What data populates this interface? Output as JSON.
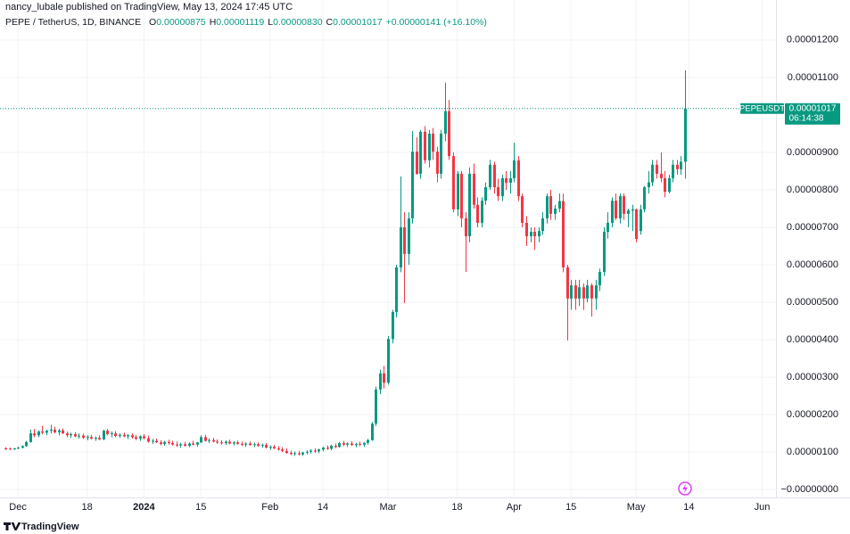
{
  "header": {
    "publisher": "nancy_lubale published on TradingView, May 13, 2024 17:45 UTC"
  },
  "chart_data": {
    "type": "candlestick",
    "symbol": "PEPE / TetherUS, 1D, BINANCE",
    "ohlc_legend": [
      {
        "label": "O",
        "value": "0.00000875"
      },
      {
        "label": "H",
        "value": "0.00001119"
      },
      {
        "label": "L",
        "value": "0.00000830"
      },
      {
        "label": "C",
        "value": "0.00001017"
      }
    ],
    "change": "+0.00000141 (+16.10%)",
    "up_color": "#089981",
    "down_color": "#f23645",
    "last_price": {
      "symbol": "PEPEUSDT",
      "price": "0.00001017",
      "countdown": "06:14:38"
    },
    "candles": [
      [
        1.1e-06,
        1.13e-06,
        1.06e-06,
        1.09e-06
      ],
      [
        1.09e-06,
        1.12e-06,
        1.06e-06,
        1.08e-06
      ],
      [
        1.08e-06,
        1.11e-06,
        1.06e-06,
        1.1e-06
      ],
      [
        1.1e-06,
        1.14e-06,
        1.08e-06,
        1.12e-06
      ],
      [
        1.12e-06,
        1.18e-06,
        1.1e-06,
        1.16e-06
      ],
      [
        1.16e-06,
        1.3e-06,
        1.14e-06,
        1.27e-06
      ],
      [
        1.27e-06,
        1.6e-06,
        1.25e-06,
        1.5e-06
      ],
      [
        1.5e-06,
        1.62e-06,
        1.4e-06,
        1.45e-06
      ],
      [
        1.45e-06,
        1.58e-06,
        1.4e-06,
        1.55e-06
      ],
      [
        1.55e-06,
        1.7e-06,
        1.48e-06,
        1.52e-06
      ],
      [
        1.52e-06,
        1.6e-06,
        1.45e-06,
        1.57e-06
      ],
      [
        1.57e-06,
        1.73e-06,
        1.5e-06,
        1.6e-06
      ],
      [
        1.6e-06,
        1.68e-06,
        1.5e-06,
        1.53e-06
      ],
      [
        1.53e-06,
        1.62e-06,
        1.45e-06,
        1.58e-06
      ],
      [
        1.58e-06,
        1.63e-06,
        1.48e-06,
        1.5e-06
      ],
      [
        1.5e-06,
        1.55e-06,
        1.4e-06,
        1.45e-06
      ],
      [
        1.45e-06,
        1.52e-06,
        1.38e-06,
        1.48e-06
      ],
      [
        1.48e-06,
        1.53e-06,
        1.4e-06,
        1.42e-06
      ],
      [
        1.42e-06,
        1.5e-06,
        1.36e-06,
        1.44e-06
      ],
      [
        1.44e-06,
        1.49e-06,
        1.35e-06,
        1.38e-06
      ],
      [
        1.38e-06,
        1.45e-06,
        1.32e-06,
        1.4e-06
      ],
      [
        1.4e-06,
        1.46e-06,
        1.34e-06,
        1.36e-06
      ],
      [
        1.36e-06,
        1.42e-06,
        1.3e-06,
        1.38e-06
      ],
      [
        1.38e-06,
        1.45e-06,
        1.32e-06,
        1.34e-06
      ],
      [
        1.34e-06,
        1.6e-06,
        1.32e-06,
        1.57e-06
      ],
      [
        1.57e-06,
        1.62e-06,
        1.45e-06,
        1.48e-06
      ],
      [
        1.48e-06,
        1.55e-06,
        1.4e-06,
        1.5e-06
      ],
      [
        1.5e-06,
        1.56e-06,
        1.4e-06,
        1.43e-06
      ],
      [
        1.43e-06,
        1.5e-06,
        1.38e-06,
        1.46e-06
      ],
      [
        1.46e-06,
        1.52e-06,
        1.4e-06,
        1.42e-06
      ],
      [
        1.42e-06,
        1.48e-06,
        1.35e-06,
        1.45e-06
      ],
      [
        1.45e-06,
        1.5e-06,
        1.36e-06,
        1.4e-06
      ],
      [
        1.4e-06,
        1.46e-06,
        1.32e-06,
        1.36e-06
      ],
      [
        1.36e-06,
        1.45e-06,
        1.3e-06,
        1.42e-06
      ],
      [
        1.42e-06,
        1.48e-06,
        1.34e-06,
        1.37e-06
      ],
      [
        1.37e-06,
        1.44e-06,
        1.25e-06,
        1.28e-06
      ],
      [
        1.28e-06,
        1.35e-06,
        1.22e-06,
        1.3e-06
      ],
      [
        1.3e-06,
        1.36e-06,
        1.24e-06,
        1.26e-06
      ],
      [
        1.26e-06,
        1.32e-06,
        1.18e-06,
        1.22e-06
      ],
      [
        1.22e-06,
        1.3e-06,
        1.17e-06,
        1.27e-06
      ],
      [
        1.27e-06,
        1.33e-06,
        1.2e-06,
        1.24e-06
      ],
      [
        1.24e-06,
        1.3e-06,
        1.18e-06,
        1.2e-06
      ],
      [
        1.2e-06,
        1.28e-06,
        1.14e-06,
        1.18e-06
      ],
      [
        1.18e-06,
        1.25e-06,
        1.12e-06,
        1.21e-06
      ],
      [
        1.21e-06,
        1.27e-06,
        1.15e-06,
        1.17e-06
      ],
      [
        1.17e-06,
        1.26e-06,
        1.13e-06,
        1.23e-06
      ],
      [
        1.23e-06,
        1.3e-06,
        1.18e-06,
        1.2e-06
      ],
      [
        1.2e-06,
        1.27e-06,
        1.15e-06,
        1.26e-06
      ],
      [
        1.26e-06,
        1.45e-06,
        1.24e-06,
        1.4e-06
      ],
      [
        1.4e-06,
        1.46e-06,
        1.28e-06,
        1.3e-06
      ],
      [
        1.3e-06,
        1.37e-06,
        1.24e-06,
        1.32e-06
      ],
      [
        1.32e-06,
        1.38e-06,
        1.26e-06,
        1.28e-06
      ],
      [
        1.28e-06,
        1.34e-06,
        1.22e-06,
        1.26e-06
      ],
      [
        1.26e-06,
        1.32e-06,
        1.2e-06,
        1.24e-06
      ],
      [
        1.24e-06,
        1.31e-06,
        1.19e-06,
        1.28e-06
      ],
      [
        1.28e-06,
        1.33e-06,
        1.21e-06,
        1.23e-06
      ],
      [
        1.23e-06,
        1.29e-06,
        1.18e-06,
        1.26e-06
      ],
      [
        1.26e-06,
        1.31e-06,
        1.2e-06,
        1.22e-06
      ],
      [
        1.22e-06,
        1.28e-06,
        1.16e-06,
        1.2e-06
      ],
      [
        1.2e-06,
        1.26e-06,
        1.14e-06,
        1.23e-06
      ],
      [
        1.23e-06,
        1.28e-06,
        1.17e-06,
        1.19e-06
      ],
      [
        1.19e-06,
        1.25e-06,
        1.13e-06,
        1.21e-06
      ],
      [
        1.21e-06,
        1.26e-06,
        1.14e-06,
        1.17e-06
      ],
      [
        1.17e-06,
        1.23e-06,
        1.12e-06,
        1.19e-06
      ],
      [
        1.19e-06,
        1.24e-06,
        1.1e-06,
        1.12e-06
      ],
      [
        1.12e-06,
        1.18e-06,
        1.06e-06,
        1.14e-06
      ],
      [
        1.14e-06,
        1.19e-06,
        1.08e-06,
        1.1e-06
      ],
      [
        1.1e-06,
        1.16e-06,
        1.04e-06,
        1.07e-06
      ],
      [
        1.07e-06,
        1.13e-06,
        1e-06,
        1.03e-06
      ],
      [
        1.03e-06,
        1.1e-06,
        9.6e-07,
        9.8e-07
      ],
      [
        9.8e-07,
        1.04e-06,
        9.2e-07,
        9.5e-07
      ],
      [
        9.5e-07,
        1.02e-06,
        9e-07,
        9.7e-07
      ],
      [
        9.7e-07,
        1.03e-06,
        9.1e-07,
        9.4e-07
      ],
      [
        9.4e-07,
        1.01e-06,
        9e-07,
        9.9e-07
      ],
      [
        9.9e-07,
        1.05e-06,
        9.4e-07,
        1.01e-06
      ],
      [
        1.01e-06,
        1.08e-06,
        9.6e-07,
        1.04e-06
      ],
      [
        1.04e-06,
        1.1e-06,
        9.8e-07,
        1.02e-06
      ],
      [
        1.02e-06,
        1.09e-06,
        9.7e-07,
        1.07e-06
      ],
      [
        1.07e-06,
        1.14e-06,
        1.02e-06,
        1.12e-06
      ],
      [
        1.12e-06,
        1.18e-06,
        1.06e-06,
        1.09e-06
      ],
      [
        1.09e-06,
        1.2e-06,
        1.05e-06,
        1.17e-06
      ],
      [
        1.17e-06,
        1.23e-06,
        1.1e-06,
        1.14e-06
      ],
      [
        1.14e-06,
        1.27e-06,
        1.12e-06,
        1.24e-06
      ],
      [
        1.24e-06,
        1.3e-06,
        1.16e-06,
        1.2e-06
      ],
      [
        1.2e-06,
        1.26e-06,
        1.14e-06,
        1.23e-06
      ],
      [
        1.23e-06,
        1.29e-06,
        1.17e-06,
        1.19e-06
      ],
      [
        1.19e-06,
        1.25e-06,
        1.13e-06,
        1.22e-06
      ],
      [
        1.22e-06,
        1.28e-06,
        1.16e-06,
        1.2e-06
      ],
      [
        1.2e-06,
        1.26e-06,
        1.14e-06,
        1.25e-06
      ],
      [
        1.25e-06,
        1.35e-06,
        1.2e-06,
        1.32e-06
      ],
      [
        1.32e-06,
        1.8e-06,
        1.3e-06,
        1.76e-06
      ],
      [
        1.76e-06,
        2.75e-06,
        1.7e-06,
        2.67e-06
      ],
      [
        2.67e-06,
        3.2e-06,
        2.55e-06,
        3.1e-06
      ],
      [
        3.1e-06,
        3.3e-06,
        2.7e-06,
        2.85e-06
      ],
      [
        2.85e-06,
        4.1e-06,
        2.8e-06,
        4.02e-06
      ],
      [
        4.02e-06,
        4.8e-06,
        3.9e-06,
        4.74e-06
      ],
      [
        4.74e-06,
        6e-06,
        4.6e-06,
        5.93e-06
      ],
      [
        5.93e-06,
        8.36e-06,
        5.8e-06,
        7e-06
      ],
      [
        7e-06,
        7.4e-06,
        4.98e-06,
        6.29e-06
      ],
      [
        6.29e-06,
        7.4e-06,
        6e-06,
        7.24e-06
      ],
      [
        7.24e-06,
        9.57e-06,
        7.1e-06,
        9.02e-06
      ],
      [
        9.02e-06,
        9.4e-06,
        8.4e-06,
        8.43e-06
      ],
      [
        8.43e-06,
        9.6e-06,
        8.3e-06,
        9.55e-06
      ],
      [
        9.55e-06,
        9.7e-06,
        8.7e-06,
        8.79e-06
      ],
      [
        8.79e-06,
        9.6e-06,
        8.6e-06,
        9.5e-06
      ],
      [
        9.5e-06,
        9.65e-06,
        8.8e-06,
        9.02e-06
      ],
      [
        9.02e-06,
        9.15e-06,
        8.2e-06,
        8.43e-06
      ],
      [
        8.43e-06,
        9.6e-06,
        8.3e-06,
        9.5e-06
      ],
      [
        9.5e-06,
        1.086e-05,
        9.3e-06,
        1.01e-05
      ],
      [
        1.01e-05,
        1.04e-05,
        8.8e-06,
        8.9e-06
      ],
      [
        8.9e-06,
        9e-06,
        7.4e-06,
        7.48e-06
      ],
      [
        7.48e-06,
        8.5e-06,
        7.3e-06,
        8.43e-06
      ],
      [
        8.43e-06,
        8.5e-06,
        7e-06,
        7.24e-06
      ],
      [
        7.24e-06,
        7.4e-06,
        5.81e-06,
        6.76e-06
      ],
      [
        6.76e-06,
        8.6e-06,
        6.6e-06,
        8.43e-06
      ],
      [
        8.43e-06,
        8.7e-06,
        7.5e-06,
        7.6e-06
      ],
      [
        7.6e-06,
        7.8e-06,
        7e-06,
        7.12e-06
      ],
      [
        7.12e-06,
        7.8e-06,
        7e-06,
        7.71e-06
      ],
      [
        7.71e-06,
        8.2e-06,
        7.6e-06,
        8.07e-06
      ],
      [
        8.07e-06,
        8.8e-06,
        8e-06,
        8.67e-06
      ],
      [
        8.67e-06,
        8.75e-06,
        7.9e-06,
        8.07e-06
      ],
      [
        8.07e-06,
        8.3e-06,
        7.7e-06,
        7.83e-06
      ],
      [
        7.83e-06,
        8.4e-06,
        7.7e-06,
        8.31e-06
      ],
      [
        8.31e-06,
        8.5e-06,
        8e-06,
        8.19e-06
      ],
      [
        8.19e-06,
        8.5e-06,
        7.9e-06,
        8.31e-06
      ],
      [
        8.31e-06,
        9.26e-06,
        8.2e-06,
        8.79e-06
      ],
      [
        8.79e-06,
        8.9e-06,
        7.7e-06,
        7.83e-06
      ],
      [
        7.83e-06,
        7.9e-06,
        7e-06,
        7.12e-06
      ],
      [
        7.12e-06,
        7.3e-06,
        6.5e-06,
        6.76e-06
      ],
      [
        6.76e-06,
        7e-06,
        6.6e-06,
        6.88e-06
      ],
      [
        6.88e-06,
        7e-06,
        6.4e-06,
        6.76e-06
      ],
      [
        6.76e-06,
        7e-06,
        6.6e-06,
        6.9e-06
      ],
      [
        6.9e-06,
        7.4e-06,
        6.8e-06,
        7.24e-06
      ],
      [
        7.24e-06,
        7.9e-06,
        7.1e-06,
        7.83e-06
      ],
      [
        7.83e-06,
        8e-06,
        7.2e-06,
        7.36e-06
      ],
      [
        7.36e-06,
        7.6e-06,
        7.2e-06,
        7.5e-06
      ],
      [
        7.5e-06,
        7.9e-06,
        7.4e-06,
        7.7e-06
      ],
      [
        7.7e-06,
        7.9e-06,
        5.8e-06,
        5.93e-06
      ],
      [
        5.93e-06,
        6e-06,
        3.98e-06,
        5.1e-06
      ],
      [
        5.1e-06,
        5.6e-06,
        4.8e-06,
        5.45e-06
      ],
      [
        5.45e-06,
        5.6e-06,
        4.8e-06,
        5.1e-06
      ],
      [
        5.1e-06,
        5.6e-06,
        4.9e-06,
        5.4e-06
      ],
      [
        5.4e-06,
        5.5e-06,
        4.8e-06,
        5.1e-06
      ],
      [
        5.1e-06,
        5.6e-06,
        5e-06,
        5.45e-06
      ],
      [
        5.45e-06,
        5.5e-06,
        4.62e-06,
        5.1e-06
      ],
      [
        5.1e-06,
        5.6e-06,
        4.8e-06,
        5.45e-06
      ],
      [
        5.45e-06,
        5.9e-06,
        5.3e-06,
        5.81e-06
      ],
      [
        5.81e-06,
        7e-06,
        5.7e-06,
        6.88e-06
      ],
      [
        6.88e-06,
        7.4e-06,
        6.7e-06,
        7.12e-06
      ],
      [
        7.12e-06,
        7.8e-06,
        7e-06,
        7.71e-06
      ],
      [
        7.71e-06,
        7.9e-06,
        7.2e-06,
        7.24e-06
      ],
      [
        7.24e-06,
        7.9e-06,
        7.1e-06,
        7.83e-06
      ],
      [
        7.83e-06,
        7.9e-06,
        7.2e-06,
        7.36e-06
      ],
      [
        7.36e-06,
        7.5e-06,
        7e-06,
        7.45e-06
      ],
      [
        7.45e-06,
        7.6e-06,
        6.9e-06,
        7.48e-06
      ],
      [
        7.48e-06,
        7.5e-06,
        6.6e-06,
        6.69e-06
      ],
      [
        6.9e-06,
        7.6e-06,
        6.8e-06,
        7.48e-06
      ],
      [
        7.48e-06,
        8.1e-06,
        7.4e-06,
        8.07e-06
      ],
      [
        8.07e-06,
        8.5e-06,
        7.9e-06,
        8.2e-06
      ],
      [
        8.2e-06,
        8.8e-06,
        8.1e-06,
        8.67e-06
      ],
      [
        8.67e-06,
        8.8e-06,
        8.3e-06,
        8.43e-06
      ],
      [
        8.43e-06,
        9e-06,
        8.2e-06,
        8.31e-06
      ],
      [
        8.31e-06,
        8.5e-06,
        7.8e-06,
        7.95e-06
      ],
      [
        7.95e-06,
        8.4e-06,
        7.9e-06,
        8.31e-06
      ],
      [
        8.31e-06,
        8.8e-06,
        8.2e-06,
        8.67e-06
      ],
      [
        8.67e-06,
        8.8e-06,
        8.4e-06,
        8.55e-06
      ],
      [
        8.55e-06,
        8.9e-06,
        8.4e-06,
        8.75e-06
      ],
      [
        8.75e-06,
        1.119e-05,
        8.3e-06,
        1.017e-05
      ]
    ],
    "xlim": [
      -1.4,
      189.4
    ],
    "xticks": [
      {
        "value": 3,
        "label": "Dec"
      },
      {
        "value": 20,
        "label": "18"
      },
      {
        "value": 34,
        "label": "2024"
      },
      {
        "value": 48,
        "label": "15"
      },
      {
        "value": 65,
        "label": "Feb"
      },
      {
        "value": 78,
        "label": "14"
      },
      {
        "value": 94,
        "label": "Mar"
      },
      {
        "value": 111,
        "label": "18"
      },
      {
        "value": 125,
        "label": "Apr"
      },
      {
        "value": 139,
        "label": "15"
      },
      {
        "value": 155,
        "label": "May"
      },
      {
        "value": 168,
        "label": "14"
      },
      {
        "value": 186,
        "label": "Jun"
      }
    ],
    "ylim": [
      -2.1e-07,
      1.271e-05
    ],
    "yticks": [
      {
        "value": 1.2e-05,
        "label": "0.00001200"
      },
      {
        "value": 1.1e-05,
        "label": "0.00001100"
      },
      {
        "value": 9e-06,
        "label": "0.00000900"
      },
      {
        "value": 8e-06,
        "label": "0.00000800"
      },
      {
        "value": 7e-06,
        "label": "0.00000700"
      },
      {
        "value": 6e-06,
        "label": "0.00000600"
      },
      {
        "value": 5e-06,
        "label": "0.00000500"
      },
      {
        "value": 4e-06,
        "label": "0.00000400"
      },
      {
        "value": 3e-06,
        "label": "0.00000300"
      },
      {
        "value": 2e-06,
        "label": "0.00000200"
      },
      {
        "value": 1e-06,
        "label": "0.00000100"
      },
      {
        "value": 0,
        "label": "−0.00000000"
      }
    ]
  },
  "footer": {
    "brand": "TradingView"
  }
}
